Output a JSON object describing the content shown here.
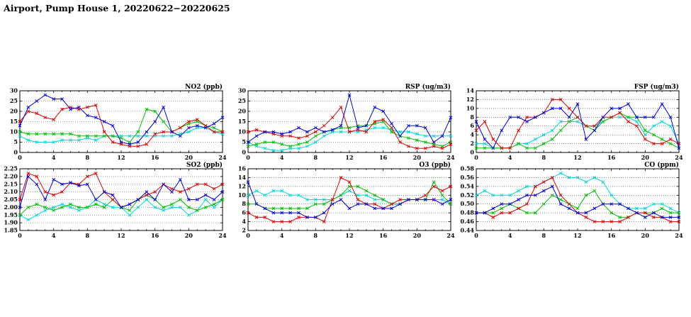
{
  "page": {
    "title": "Airport, Pump House 1, 20220622−20220625"
  },
  "chart_data": [
    {
      "id": "no2",
      "type": "line",
      "title": "NO2 (ppb)",
      "xlim": [
        0,
        24
      ],
      "xticks": [
        0,
        4,
        8,
        12,
        16,
        20,
        24
      ],
      "ylim": [
        0,
        30
      ],
      "yticks": [
        0,
        5,
        10,
        15,
        20,
        25,
        30
      ],
      "ytick_labels": [
        "0",
        "5",
        "10",
        "15",
        "20",
        "25",
        "30"
      ],
      "grid": true,
      "legend": "none",
      "series": [
        {
          "name": "blue",
          "color": "#0000e0",
          "values": [
            13,
            22,
            25,
            28,
            26,
            26,
            21,
            22,
            18,
            17,
            15,
            13,
            5,
            4,
            5,
            10,
            15,
            22,
            10,
            8,
            12,
            13,
            12,
            14,
            17
          ]
        },
        {
          "name": "red",
          "color": "#e00000",
          "values": [
            15,
            20,
            19,
            17,
            16,
            21,
            22,
            21,
            22,
            23,
            10,
            5,
            4,
            3,
            3,
            4,
            9,
            10,
            10,
            12,
            15,
            16,
            13,
            10,
            10
          ]
        },
        {
          "name": "green",
          "color": "#00c000",
          "values": [
            10,
            9,
            9,
            9,
            9,
            9,
            9,
            8,
            8,
            8,
            8,
            8,
            7,
            5,
            10,
            21,
            20,
            15,
            10,
            12,
            14,
            15,
            13,
            12,
            10
          ]
        },
        {
          "name": "cyan",
          "color": "#00d8d8",
          "values": [
            8,
            6,
            5,
            5,
            5,
            6,
            6,
            6,
            7,
            6,
            8,
            8,
            8,
            8,
            8,
            8,
            8,
            8,
            8,
            9,
            10,
            12,
            12,
            10,
            9
          ]
        }
      ]
    },
    {
      "id": "rsp",
      "type": "line",
      "title": "RSP (ug/m3)",
      "xlim": [
        0,
        24
      ],
      "xticks": [
        0,
        4,
        8,
        12,
        16,
        20,
        24
      ],
      "ylim": [
        0,
        30
      ],
      "yticks": [
        0,
        5,
        10,
        15,
        20,
        25,
        30
      ],
      "ytick_labels": [
        "0",
        "5",
        "10",
        "15",
        "20",
        "25",
        "30"
      ],
      "grid": true,
      "legend": "none",
      "series": [
        {
          "name": "blue",
          "color": "#0000e0",
          "values": [
            5,
            8,
            10,
            10,
            9,
            10,
            12,
            10,
            12,
            10,
            11,
            13,
            28,
            12,
            13,
            22,
            20,
            14,
            8,
            13,
            13,
            12,
            5,
            8,
            17
          ]
        },
        {
          "name": "red",
          "color": "#e00000",
          "values": [
            10,
            11,
            10,
            9,
            8,
            8,
            7,
            8,
            10,
            13,
            17,
            22,
            10,
            11,
            10,
            15,
            16,
            12,
            5,
            3,
            2,
            2,
            3,
            2,
            4
          ]
        },
        {
          "name": "green",
          "color": "#00c000",
          "values": [
            3,
            4,
            5,
            5,
            4,
            3,
            4,
            5,
            8,
            10,
            11,
            12,
            12,
            13,
            13,
            14,
            15,
            10,
            8,
            7,
            6,
            5,
            4,
            3,
            5
          ]
        },
        {
          "name": "cyan",
          "color": "#00d8d8",
          "values": [
            5,
            3,
            2,
            1,
            1,
            2,
            2,
            3,
            5,
            8,
            10,
            10,
            10,
            10,
            11,
            12,
            12,
            11,
            10,
            10,
            9,
            8,
            8,
            8,
            8
          ]
        }
      ]
    },
    {
      "id": "fsp",
      "type": "line",
      "title": "FSP (ug/m3)",
      "xlim": [
        0,
        24
      ],
      "xticks": [
        0,
        4,
        8,
        12,
        16,
        20,
        24
      ],
      "ylim": [
        0,
        14
      ],
      "yticks": [
        0,
        2,
        4,
        6,
        8,
        10,
        12,
        14
      ],
      "ytick_labels": [
        "0",
        "2",
        "4",
        "6",
        "8",
        "10",
        "12",
        "14"
      ],
      "grid": true,
      "legend": "none",
      "series": [
        {
          "name": "blue",
          "color": "#0000e0",
          "values": [
            7,
            3,
            1,
            5,
            8,
            8,
            7,
            8,
            9,
            10,
            10,
            8,
            11,
            3,
            5,
            8,
            10,
            10,
            11,
            8,
            8,
            8,
            11,
            8,
            1
          ]
        },
        {
          "name": "red",
          "color": "#e00000",
          "values": [
            5,
            7,
            3,
            1,
            1,
            5,
            8,
            8,
            9,
            12,
            12,
            10,
            8,
            6,
            6,
            8,
            8,
            9,
            7,
            6,
            3,
            2,
            2,
            3,
            2
          ]
        },
        {
          "name": "green",
          "color": "#00c000",
          "values": [
            1,
            1,
            1,
            1,
            1,
            2,
            1,
            1,
            2,
            3,
            5,
            7,
            8,
            6,
            5,
            7,
            8,
            9,
            8,
            8,
            5,
            4,
            3,
            2,
            1
          ]
        },
        {
          "name": "cyan",
          "color": "#00d8d8",
          "values": [
            2,
            2,
            1,
            1,
            1,
            2,
            2,
            3,
            4,
            5,
            7,
            7,
            7,
            6,
            6,
            7,
            8,
            8,
            8,
            7,
            4,
            6,
            7,
            6,
            2
          ]
        }
      ]
    },
    {
      "id": "so2",
      "type": "line",
      "title": "SO2 (ppb)",
      "xlim": [
        0,
        24
      ],
      "xticks": [
        0,
        4,
        8,
        12,
        16,
        20,
        24
      ],
      "ylim": [
        1.85,
        2.25
      ],
      "yticks": [
        1.85,
        1.9,
        1.95,
        2.0,
        2.05,
        2.1,
        2.15,
        2.2,
        2.25
      ],
      "ytick_labels": [
        "1.85",
        "1.90",
        "1.95",
        "2.00",
        "2.05",
        "2.10",
        "2.15",
        "2.20",
        "2.25"
      ],
      "grid": true,
      "legend": "none",
      "series": [
        {
          "name": "blue",
          "color": "#0000e0",
          "values": [
            2.0,
            2.2,
            2.15,
            2.05,
            2.18,
            2.15,
            2.16,
            2.14,
            2.15,
            2.05,
            2.1,
            2.08,
            2.0,
            2.02,
            2.05,
            2.1,
            2.05,
            2.15,
            2.1,
            2.18,
            2.05,
            2.05,
            2.08,
            2.05,
            2.1
          ]
        },
        {
          "name": "red",
          "color": "#e00000",
          "values": [
            2.05,
            2.22,
            2.2,
            2.1,
            2.08,
            2.1,
            2.16,
            2.15,
            2.2,
            2.22,
            2.1,
            2.05,
            2.0,
            2.02,
            2.05,
            2.08,
            2.1,
            2.15,
            2.12,
            2.1,
            2.12,
            2.15,
            2.15,
            2.12,
            2.15
          ]
        },
        {
          "name": "green",
          "color": "#00c000",
          "values": [
            1.95,
            2.0,
            2.02,
            2.0,
            1.98,
            2.0,
            2.02,
            2.0,
            2.0,
            2.02,
            2.0,
            2.05,
            2.0,
            1.98,
            2.05,
            2.08,
            2.05,
            2.0,
            2.02,
            2.05,
            2.0,
            1.98,
            2.0,
            2.02,
            2.05
          ]
        },
        {
          "name": "cyan",
          "color": "#00d8d8",
          "values": [
            1.95,
            1.92,
            1.95,
            1.98,
            2.0,
            2.02,
            2.0,
            1.98,
            2.0,
            2.05,
            2.02,
            2.0,
            2.0,
            1.95,
            2.0,
            2.05,
            2.0,
            1.98,
            2.0,
            2.0,
            1.95,
            1.98,
            2.05,
            2.0,
            2.05
          ]
        }
      ]
    },
    {
      "id": "o3",
      "type": "line",
      "title": "O3 (ppb)",
      "xlim": [
        0,
        24
      ],
      "xticks": [
        0,
        4,
        8,
        12,
        16,
        20,
        24
      ],
      "ylim": [
        2,
        16
      ],
      "yticks": [
        2,
        4,
        6,
        8,
        10,
        12,
        14,
        16
      ],
      "ytick_labels": [
        "2",
        "4",
        "6",
        "8",
        "10",
        "12",
        "14",
        "16"
      ],
      "grid": true,
      "legend": "none",
      "series": [
        {
          "name": "blue",
          "color": "#0000e0",
          "values": [
            13,
            8,
            7,
            6,
            6,
            6,
            6,
            5,
            5,
            6,
            8,
            9,
            7,
            8,
            8,
            7,
            7,
            7,
            8,
            9,
            9,
            9,
            9,
            8,
            9
          ]
        },
        {
          "name": "red",
          "color": "#e00000",
          "values": [
            6,
            5,
            5,
            4,
            4,
            4,
            5,
            5,
            5,
            4,
            9,
            14,
            13,
            9,
            8,
            8,
            7,
            8,
            9,
            9,
            9,
            10,
            12,
            11,
            12
          ]
        },
        {
          "name": "green",
          "color": "#00c000",
          "values": [
            8,
            8,
            7,
            7,
            7,
            7,
            7,
            7,
            8,
            8,
            9,
            10,
            12,
            12,
            11,
            10,
            9,
            8,
            8,
            9,
            9,
            9,
            13,
            10,
            8
          ]
        },
        {
          "name": "cyan",
          "color": "#00d8d8",
          "values": [
            10,
            11,
            10,
            11,
            11,
            10,
            10,
            9,
            9,
            9,
            9,
            10,
            11,
            10,
            10,
            9,
            9,
            8,
            8,
            9,
            9,
            9,
            9,
            9,
            8
          ]
        }
      ]
    },
    {
      "id": "co",
      "type": "line",
      "title": "CO (ppm)",
      "xlim": [
        0,
        24
      ],
      "xticks": [
        0,
        4,
        8,
        12,
        16,
        20,
        24
      ],
      "ylim": [
        0.44,
        0.58
      ],
      "yticks": [
        0.44,
        0.46,
        0.48,
        0.5,
        0.52,
        0.54,
        0.56,
        0.58
      ],
      "ytick_labels": [
        "0.44",
        "0.46",
        "0.48",
        "0.50",
        "0.52",
        "0.54",
        "0.56",
        "0.58"
      ],
      "grid": true,
      "legend": "none",
      "series": [
        {
          "name": "blue",
          "color": "#0000e0",
          "values": [
            0.48,
            0.48,
            0.49,
            0.5,
            0.5,
            0.51,
            0.52,
            0.52,
            0.53,
            0.54,
            0.5,
            0.49,
            0.48,
            0.48,
            0.49,
            0.5,
            0.5,
            0.5,
            0.49,
            0.48,
            0.47,
            0.48,
            0.47,
            0.47,
            0.47
          ]
        },
        {
          "name": "red",
          "color": "#e00000",
          "values": [
            0.48,
            0.48,
            0.47,
            0.48,
            0.48,
            0.49,
            0.5,
            0.54,
            0.55,
            0.56,
            0.52,
            0.5,
            0.48,
            0.47,
            0.46,
            0.46,
            0.46,
            0.46,
            0.47,
            0.48,
            0.48,
            0.47,
            0.47,
            0.46,
            0.46
          ]
        },
        {
          "name": "green",
          "color": "#00c000",
          "values": [
            0.48,
            0.48,
            0.48,
            0.49,
            0.5,
            0.49,
            0.48,
            0.48,
            0.5,
            0.52,
            0.51,
            0.5,
            0.49,
            0.52,
            0.53,
            0.5,
            0.48,
            0.47,
            0.47,
            0.48,
            0.48,
            0.48,
            0.49,
            0.48,
            0.48
          ]
        },
        {
          "name": "cyan",
          "color": "#00d8d8",
          "values": [
            0.52,
            0.53,
            0.52,
            0.52,
            0.52,
            0.53,
            0.54,
            0.54,
            0.55,
            0.56,
            0.57,
            0.56,
            0.56,
            0.55,
            0.56,
            0.55,
            0.52,
            0.5,
            0.49,
            0.49,
            0.49,
            0.5,
            0.5,
            0.49,
            0.48
          ]
        }
      ]
    }
  ]
}
